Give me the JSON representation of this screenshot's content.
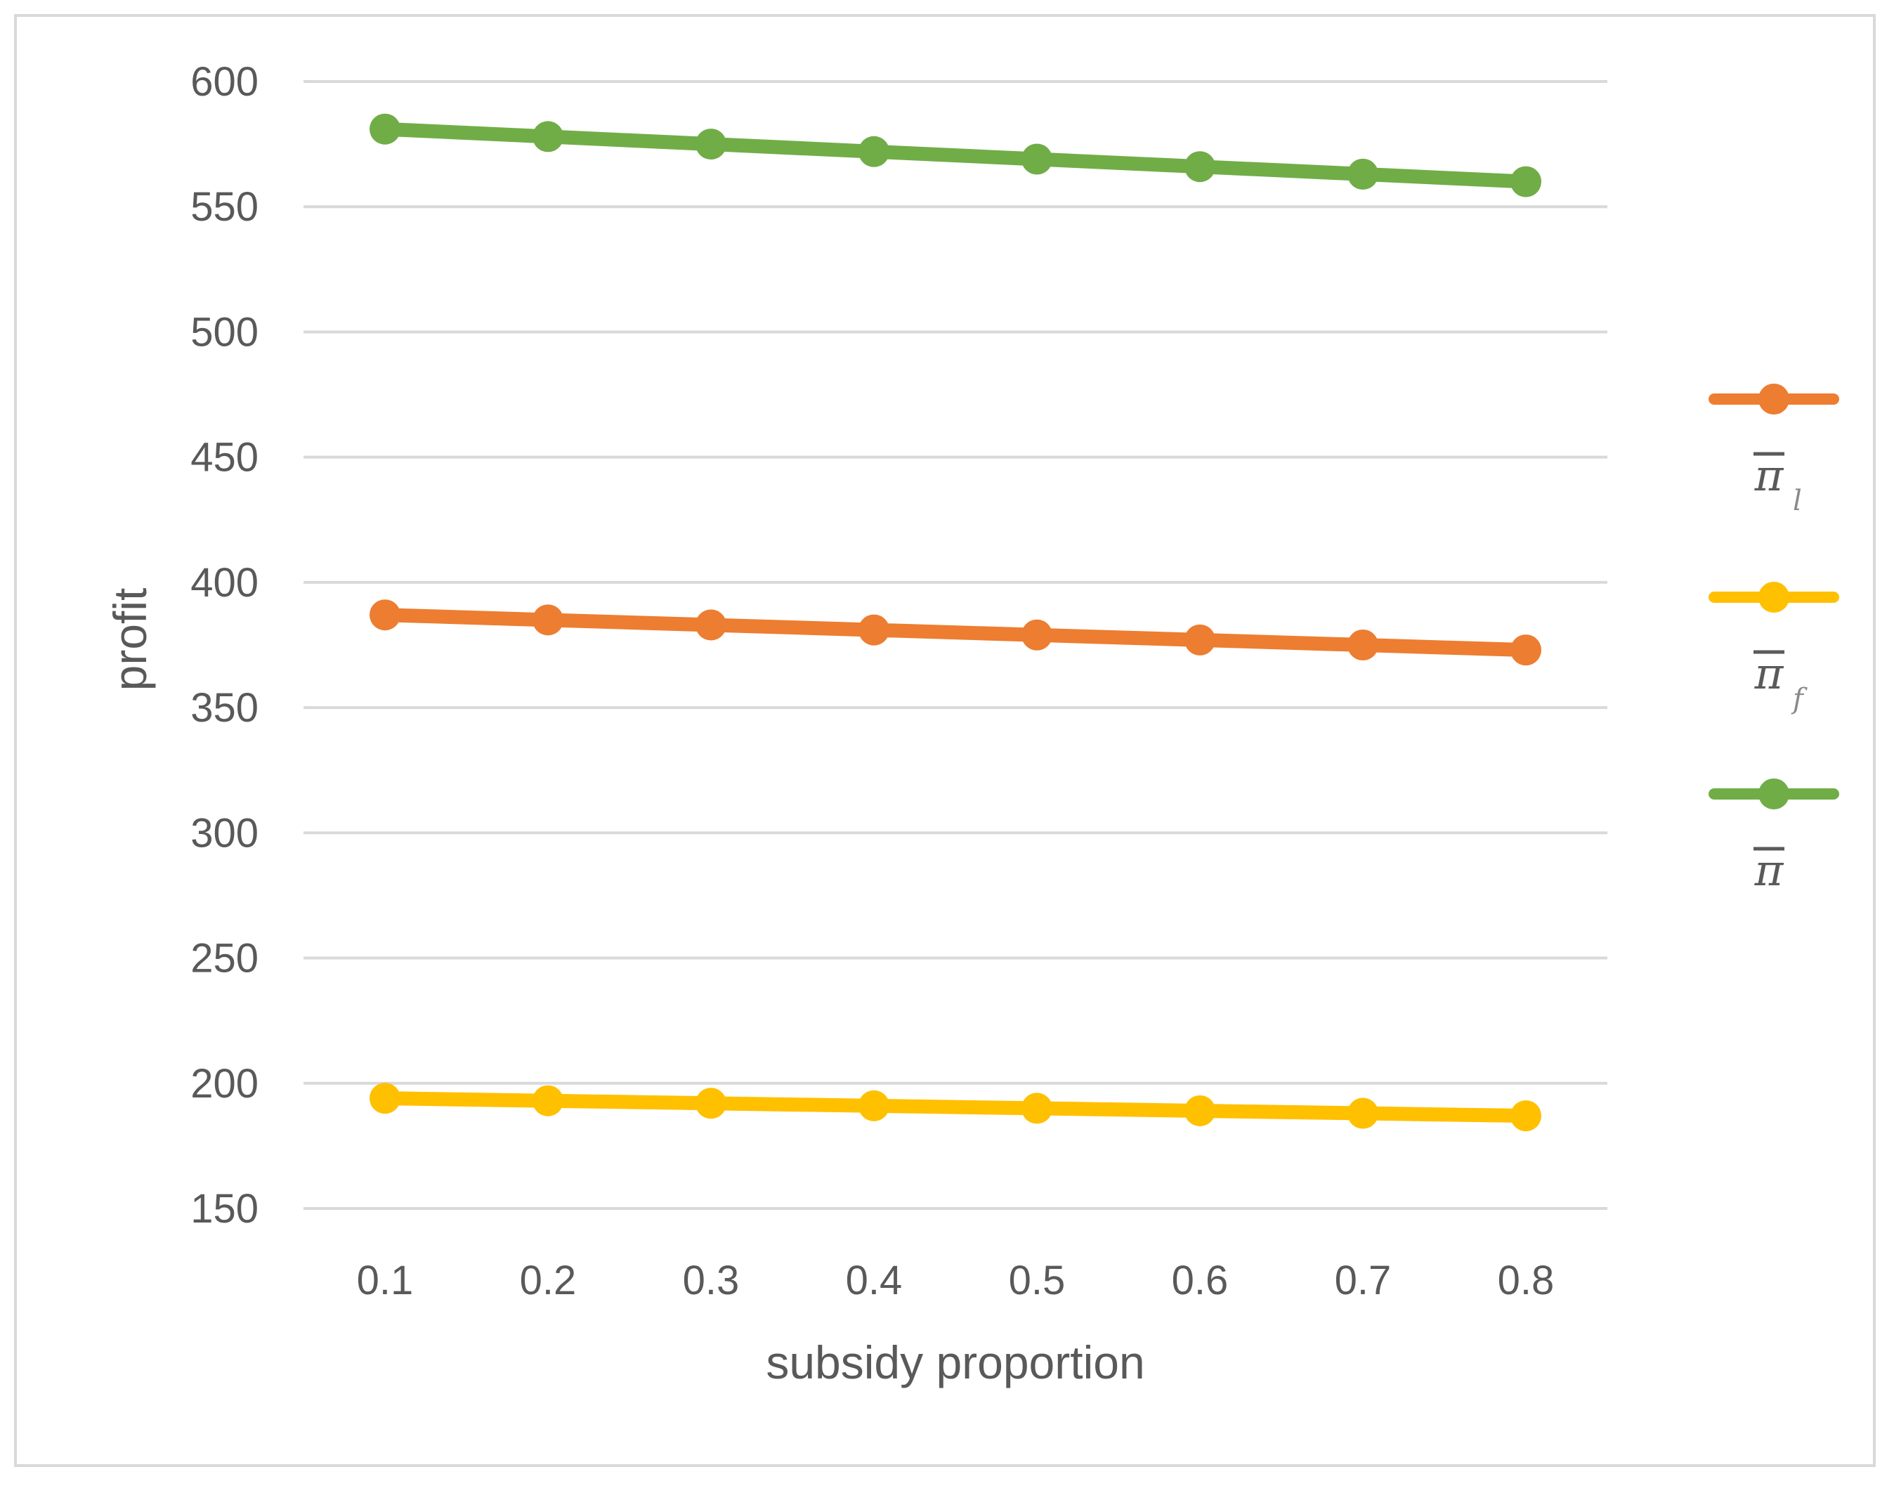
{
  "chart_data": {
    "type": "line",
    "title": "",
    "xlabel": "subsidy proportion",
    "ylabel": "profit",
    "categories": [
      "0.1",
      "0.2",
      "0.3",
      "0.4",
      "0.5",
      "0.6",
      "0.7",
      "0.8"
    ],
    "ylim": [
      150,
      600
    ],
    "yticks": [
      "150",
      "200",
      "250",
      "300",
      "350",
      "400",
      "450",
      "500",
      "550",
      "600"
    ],
    "grid": true,
    "legend_position": "right",
    "series": [
      {
        "name": "π",
        "subscript": "l",
        "color": "#ED7D31",
        "values": [
          387,
          385,
          383,
          381,
          379,
          377,
          375,
          373
        ]
      },
      {
        "name": "π",
        "subscript": "f",
        "color": "#FFC000",
        "values": [
          194,
          193,
          192,
          191,
          190,
          189,
          188,
          187
        ]
      },
      {
        "name": "π",
        "subscript": "",
        "color": "#70AD47",
        "values": [
          581,
          578,
          575,
          572,
          569,
          566,
          563,
          560
        ]
      }
    ]
  }
}
